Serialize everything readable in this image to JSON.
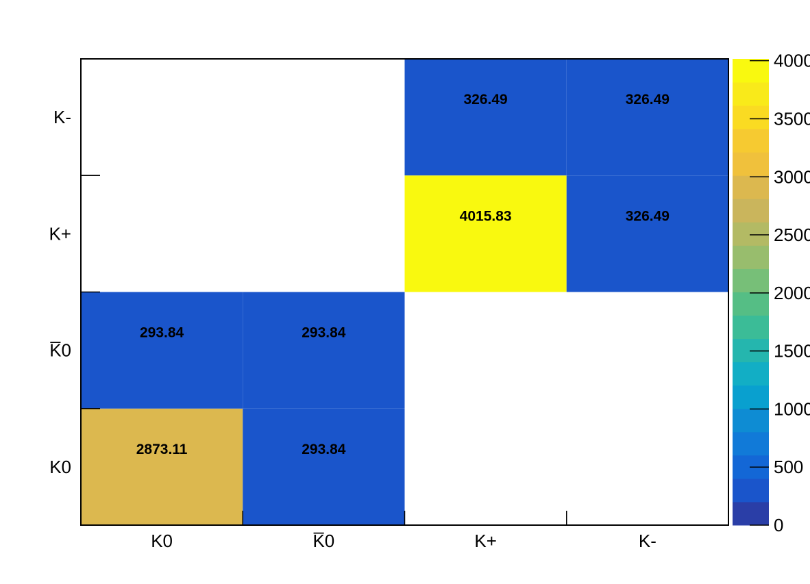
{
  "chart_data": {
    "type": "heatmap",
    "title": "",
    "xlabel": "",
    "ylabel": "",
    "x_categories": [
      "K0",
      "K̅0",
      "K+",
      "K-"
    ],
    "y_categories": [
      "K0",
      "K̅0",
      "K+",
      "K-"
    ],
    "cells": [
      {
        "x": "K0",
        "y": "K0",
        "value": 2873.11
      },
      {
        "x": "K̅0",
        "y": "K0",
        "value": 293.84
      },
      {
        "x": "K0",
        "y": "K̅0",
        "value": 293.84
      },
      {
        "x": "K̅0",
        "y": "K̅0",
        "value": 293.84
      },
      {
        "x": "K+",
        "y": "K+",
        "value": 4015.83
      },
      {
        "x": "K-",
        "y": "K+",
        "value": 326.49
      },
      {
        "x": "K+",
        "y": "K-",
        "value": 326.49
      },
      {
        "x": "K-",
        "y": "K-",
        "value": 326.49
      }
    ],
    "cell_labels": [
      "2873.11",
      "293.84",
      "293.84",
      "293.84",
      "4015.83",
      "326.49",
      "326.49",
      "326.49"
    ],
    "colorbar": {
      "range": [
        0,
        4015.83
      ],
      "ticks": [
        0,
        500,
        1000,
        1500,
        2000,
        2500,
        3000,
        3500,
        4000
      ],
      "tick_labels": [
        "0",
        "500",
        "1000",
        "1500",
        "2000",
        "2500",
        "3000",
        "3500",
        "4000"
      ],
      "palette": [
        "#2a3ea7",
        "#1a55cb",
        "#1367d6",
        "#117ad8",
        "#0e8cd3",
        "#09a0cf",
        "#12aec5",
        "#25b6ae",
        "#3bbc97",
        "#55be85",
        "#77bf78",
        "#98bd6d",
        "#b3ba64",
        "#cab55c",
        "#dcb84f",
        "#f0c13c",
        "#f6ca31",
        "#fadb22",
        "#f9ea1a",
        "#f9f90f"
      ]
    },
    "grid": false,
    "legend": "colorbar-right"
  }
}
